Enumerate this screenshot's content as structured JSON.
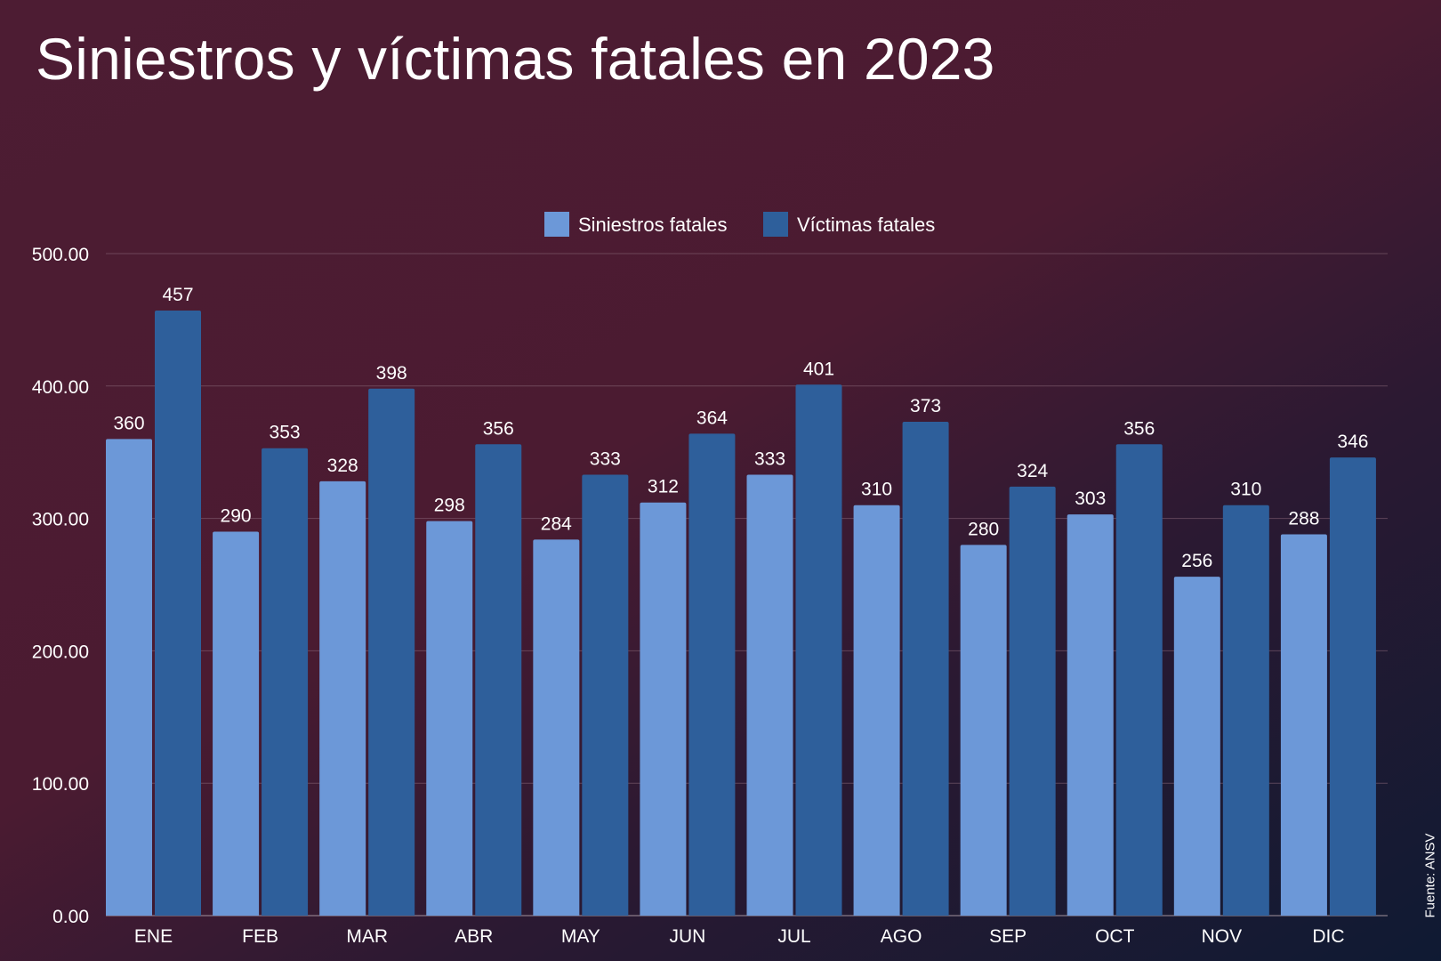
{
  "title": "Siniestros y víctimas fatales en 2023",
  "source": "Fuente: ANSV",
  "colors": {
    "siniestros": "#6c98d8",
    "victimas": "#2e5f9b",
    "grid": "#8a6a7a",
    "axis": "#b0a0aa"
  },
  "chart_data": {
    "type": "bar",
    "title": "Siniestros y víctimas fatales en 2023",
    "xlabel": "",
    "ylabel": "",
    "ylim": [
      0,
      500
    ],
    "yticks": [
      "0.00",
      "100.00",
      "200.00",
      "300.00",
      "400.00",
      "500.00"
    ],
    "grid": true,
    "legend_position": "top-center",
    "categories": [
      "ENE",
      "FEB",
      "MAR",
      "ABR",
      "MAY",
      "JUN",
      "JUL",
      "AGO",
      "SEP",
      "OCT",
      "NOV",
      "DIC"
    ],
    "series": [
      {
        "name": "Siniestros fatales",
        "values": [
          360,
          290,
          328,
          298,
          284,
          312,
          333,
          310,
          280,
          303,
          256,
          288
        ]
      },
      {
        "name": "Víctimas fatales",
        "values": [
          457,
          353,
          398,
          356,
          333,
          364,
          401,
          373,
          324,
          356,
          310,
          346
        ]
      }
    ]
  }
}
